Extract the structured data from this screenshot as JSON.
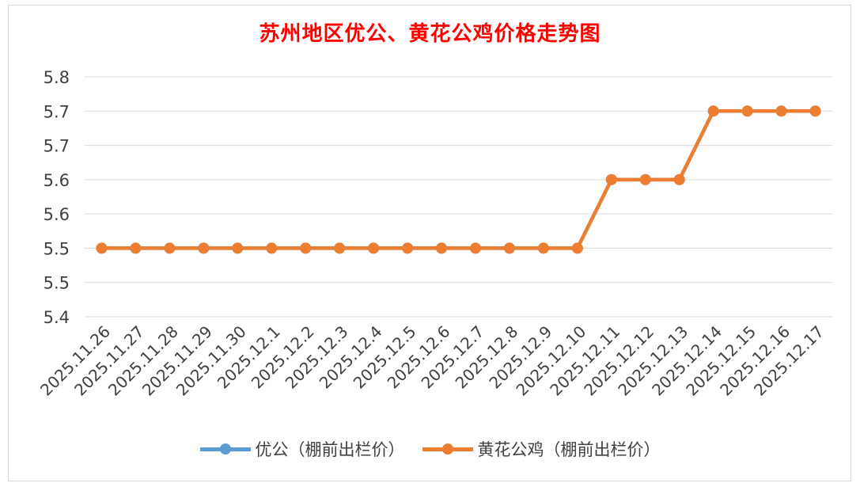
{
  "chart_data": {
    "type": "line",
    "title": "苏州地区优公、黄花公鸡价格走势图",
    "categories": [
      "2025.11.26",
      "2025.11.27",
      "2025.11.28",
      "2025.11.29",
      "2025.11.30",
      "2025.12.1",
      "2025.12.2",
      "2025.12.3",
      "2025.12.4",
      "2025.12.5",
      "2025.12.6",
      "2025.12.7",
      "2025.12.8",
      "2025.12.9",
      "2025.12.10",
      "2025.12.11",
      "2025.12.12",
      "2025.12.13",
      "2025.12.14",
      "2025.12.15",
      "2025.12.16",
      "2025.12.17"
    ],
    "series": [
      {
        "name": "优公（棚前出栏价）",
        "color": "#5b9bd5",
        "values": [
          5.5,
          5.5,
          5.5,
          5.5,
          5.5,
          5.5,
          5.5,
          5.5,
          5.5,
          5.5,
          5.5,
          5.5,
          5.5,
          5.5,
          5.5,
          5.6,
          5.6,
          5.6,
          5.7,
          5.7,
          5.7,
          5.7
        ]
      },
      {
        "name": "黄花公鸡（棚前出栏价）",
        "color": "#ed7d31",
        "values": [
          5.5,
          5.5,
          5.5,
          5.5,
          5.5,
          5.5,
          5.5,
          5.5,
          5.5,
          5.5,
          5.5,
          5.5,
          5.5,
          5.5,
          5.5,
          5.6,
          5.6,
          5.6,
          5.7,
          5.7,
          5.7,
          5.7
        ]
      }
    ],
    "ytick_labels": [
      "5.4",
      "5.5",
      "5.5",
      "5.6",
      "5.6",
      "5.7",
      "5.7",
      "5.8"
    ],
    "ylim": [
      5.4,
      5.75
    ],
    "grid": true,
    "legend_position": "bottom",
    "xlabel": "",
    "ylabel": ""
  }
}
